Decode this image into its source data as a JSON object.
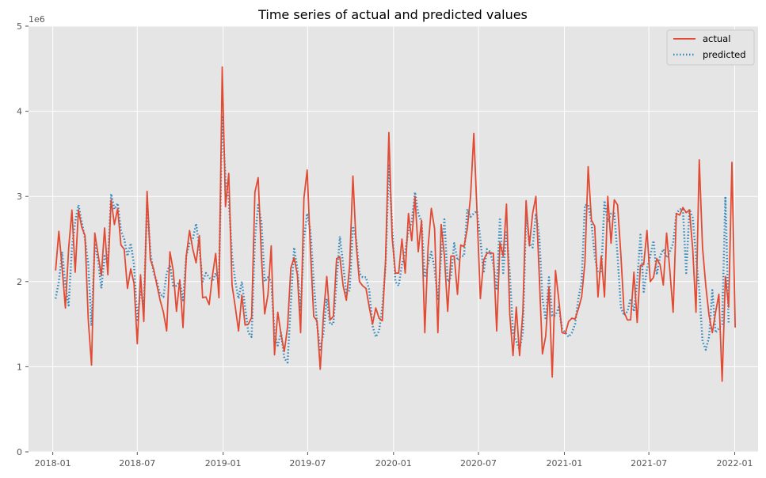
{
  "chart_data": {
    "type": "line",
    "title": "Time series of actual and predicted values",
    "xlabel": "",
    "ylabel": "",
    "y_multiplier_label": "1e6",
    "xlim": [
      "2017-11-10",
      "2022-02-20"
    ],
    "ylim": [
      0,
      5000000
    ],
    "grid": true,
    "legend_position": "top-right",
    "x_ticks": [
      {
        "date": "2018-01-01",
        "label": "2018-01"
      },
      {
        "date": "2018-07-01",
        "label": "2018-07"
      },
      {
        "date": "2019-01-01",
        "label": "2019-01"
      },
      {
        "date": "2019-07-01",
        "label": "2019-07"
      },
      {
        "date": "2020-01-01",
        "label": "2020-01"
      },
      {
        "date": "2020-07-01",
        "label": "2020-07"
      },
      {
        "date": "2021-01-01",
        "label": "2021-01"
      },
      {
        "date": "2021-07-01",
        "label": "2021-07"
      },
      {
        "date": "2022-01-01",
        "label": "2022-01"
      }
    ],
    "y_ticks": [
      {
        "value": 0,
        "label": "0"
      },
      {
        "value": 1000000,
        "label": "1"
      },
      {
        "value": 2000000,
        "label": "2"
      },
      {
        "value": 3000000,
        "label": "3"
      },
      {
        "value": 4000000,
        "label": "4"
      },
      {
        "value": 5000000,
        "label": "5"
      }
    ],
    "colors": {
      "actual": "#E24A33",
      "predicted": "#348ABD",
      "background": "#E5E5E5",
      "grid": "#FFFFFF"
    },
    "start_date": "2018-01-07",
    "frequency": "weekly",
    "series": [
      {
        "name": "actual",
        "style": "solid",
        "values": [
          2130000,
          2590000,
          2160000,
          1690000,
          2390000,
          2840000,
          2110000,
          2840000,
          2640000,
          2540000,
          1550000,
          1020000,
          2570000,
          2320000,
          2070000,
          2630000,
          2080000,
          2960000,
          2670000,
          2860000,
          2430000,
          2380000,
          1920000,
          2150000,
          1980000,
          1270000,
          2080000,
          1530000,
          3060000,
          2260000,
          2150000,
          1960000,
          1780000,
          1640000,
          1420000,
          2350000,
          2130000,
          1650000,
          2020000,
          1460000,
          2300000,
          2600000,
          2380000,
          2220000,
          2540000,
          1810000,
          1820000,
          1730000,
          2070000,
          2330000,
          1810000,
          4520000,
          2880000,
          3270000,
          1960000,
          1700000,
          1420000,
          1840000,
          1490000,
          1500000,
          1580000,
          3050000,
          3220000,
          2290000,
          1620000,
          1850000,
          2420000,
          1140000,
          1640000,
          1380000,
          1180000,
          1470000,
          2160000,
          2280000,
          2080000,
          1400000,
          2980000,
          3310000,
          2360000,
          1590000,
          1540000,
          970000,
          1620000,
          2060000,
          1550000,
          1590000,
          2270000,
          2290000,
          1950000,
          1780000,
          2190000,
          3240000,
          2430000,
          2000000,
          1950000,
          1920000,
          1700000,
          1500000,
          1690000,
          1570000,
          1540000,
          2260000,
          3750000,
          2520000,
          2100000,
          2100000,
          2500000,
          2100000,
          2800000,
          2480000,
          3000000,
          2350000,
          2720000,
          1400000,
          2400000,
          2860000,
          2620000,
          1400000,
          2670000,
          2300000,
          1650000,
          2300000,
          2300000,
          1850000,
          2430000,
          2410000,
          2620000,
          3000000,
          3740000,
          2800000,
          1800000,
          2250000,
          2330000,
          2340000,
          2330000,
          1420000,
          2460000,
          2300000,
          2910000,
          1620000,
          1130000,
          1700000,
          1130000,
          1640000,
          2950000,
          2420000,
          2800000,
          3000000,
          2100000,
          1150000,
          1360000,
          1940000,
          880000,
          2130000,
          1790000,
          1400000,
          1390000,
          1530000,
          1570000,
          1560000,
          1680000,
          1820000,
          2220000,
          3350000,
          2720000,
          2650000,
          1820000,
          2300000,
          1820000,
          3000000,
          2450000,
          2960000,
          2900000,
          2320000,
          1640000,
          1550000,
          1550000,
          2110000,
          1520000,
          2190000,
          2200000,
          2600000,
          2000000,
          2050000,
          2270000,
          2200000,
          1960000,
          2570000,
          2130000,
          1640000,
          2800000,
          2780000,
          2870000,
          2810000,
          2840000,
          2380000,
          1640000,
          3430000,
          2400000,
          1950000,
          1600000,
          1400000,
          1640000,
          1850000,
          830000,
          2060000,
          1700000,
          3400000,
          1460000
        ]
      },
      {
        "name": "predicted",
        "style": "dotted",
        "values": [
          1800000,
          2000000,
          2350000,
          1950000,
          1720000,
          2400000,
          2700000,
          2900000,
          2700000,
          2500000,
          2200000,
          1480000,
          2450000,
          2250000,
          1920000,
          2300000,
          2200000,
          3030000,
          2850000,
          2920000,
          2600000,
          2500000,
          2300000,
          2450000,
          2200000,
          1550000,
          1900000,
          1700000,
          2950000,
          2350000,
          2100000,
          2000000,
          1850000,
          1820000,
          2100000,
          2200000,
          1950000,
          1950000,
          2000000,
          1780000,
          2300000,
          2450000,
          2500000,
          2680000,
          2400000,
          2000000,
          2100000,
          2050000,
          2000000,
          2100000,
          2000000,
          3950000,
          3200000,
          2970000,
          2300000,
          2000000,
          1800000,
          2000000,
          1700000,
          1400000,
          1350000,
          2500000,
          2900000,
          2700000,
          2000000,
          2050000,
          2000000,
          1400000,
          1250000,
          1400000,
          1100000,
          1050000,
          1750000,
          2400000,
          2150000,
          1650000,
          2500000,
          2800000,
          2600000,
          2000000,
          1500000,
          1200000,
          1400000,
          1800000,
          1500000,
          1500000,
          2000000,
          2530000,
          2200000,
          1850000,
          1900000,
          2650000,
          2500000,
          2100000,
          2050000,
          2050000,
          1900000,
          1480000,
          1350000,
          1420000,
          1700000,
          2200000,
          3380000,
          2650000,
          2000000,
          1950000,
          2200000,
          2350000,
          2600000,
          2700000,
          3050000,
          2800000,
          2700000,
          2050000,
          2200000,
          2350000,
          2150000,
          1780000,
          2300000,
          2730000,
          2000000,
          2050000,
          2450000,
          2250000,
          2300000,
          2300000,
          2850000,
          2760000,
          2800000,
          2830000,
          2500000,
          2100000,
          2380000,
          2350000,
          2200000,
          1900000,
          2750000,
          2100000,
          2600000,
          2100000,
          1400000,
          1300000,
          1200000,
          1400000,
          2800000,
          2450000,
          2400000,
          2800000,
          2550000,
          1800000,
          1550000,
          2050000,
          1600000,
          1600000,
          1700000,
          1450000,
          1400000,
          1350000,
          1400000,
          1500000,
          1800000,
          2000000,
          2900000,
          2900000,
          2700000,
          2300000,
          2100000,
          2100000,
          2950000,
          2700000,
          2800000,
          2800000,
          2300000,
          1700000,
          1600000,
          1650000,
          1800000,
          1650000,
          2000000,
          2550000,
          1880000,
          2150000,
          2300000,
          2480000,
          2080000,
          2300000,
          2380000,
          2280000,
          2350000,
          2450000,
          2800000,
          2850000,
          2850000,
          2100000,
          2850000,
          2750000,
          2300000,
          1900000,
          1300000,
          1200000,
          1350000,
          1900000,
          1400000,
          1450000,
          1500000,
          3000000,
          1500000
        ]
      }
    ]
  }
}
